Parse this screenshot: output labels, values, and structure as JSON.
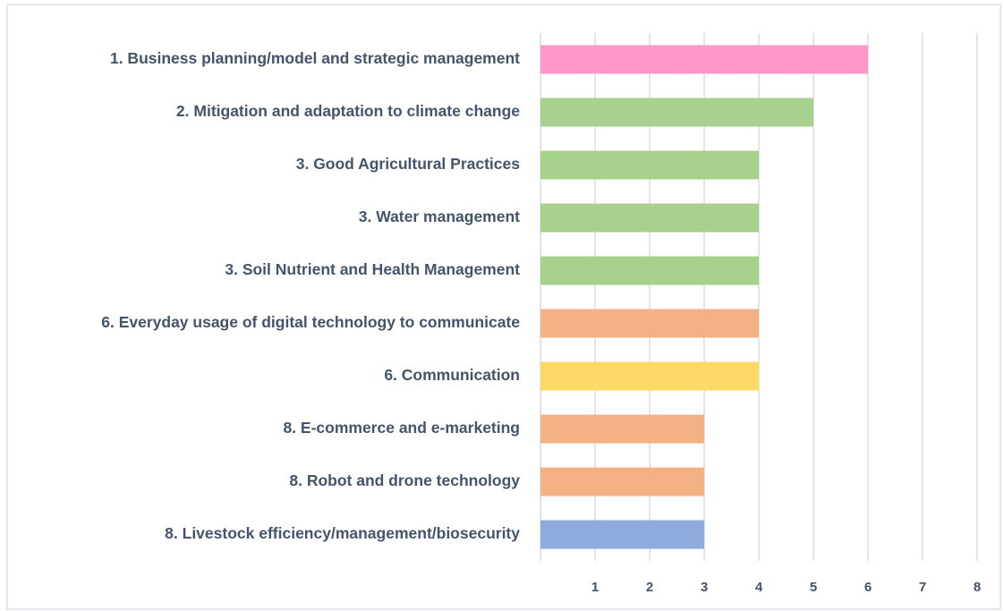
{
  "chart_data": {
    "type": "bar",
    "orientation": "horizontal",
    "categories": [
      "1. Business planning/model and strategic management",
      "2. Mitigation and adaptation to climate change",
      "3. Good Agricultural Practices",
      "3. Water management",
      "3. Soil Nutrient and Health Management",
      "6. Everyday usage of digital technology to communicate",
      "6. Communication",
      "8. E-commerce and e-marketing",
      "8. Robot and drone technology",
      "8. Livestock efficiency/management/biosecurity"
    ],
    "values": [
      6,
      5,
      4,
      4,
      4,
      4,
      4,
      3,
      3,
      3
    ],
    "colors": [
      "#ff99cc",
      "#a9d18e",
      "#a9d18e",
      "#a9d18e",
      "#a9d18e",
      "#f4b183",
      "#ffd966",
      "#f4b183",
      "#f4b183",
      "#8faadc"
    ],
    "xlim": [
      0,
      8
    ],
    "xticks": [
      1,
      2,
      3,
      4,
      5,
      6,
      7,
      8
    ],
    "grid": true
  }
}
